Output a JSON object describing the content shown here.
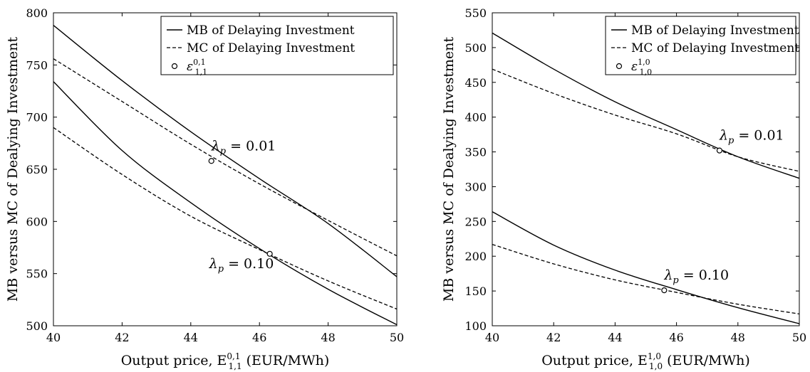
{
  "chart_data": [
    {
      "type": "line",
      "xlabel": "Output price, E",
      "xlabel_super": "0,1",
      "xlabel_sub": "1,1",
      "xlabel_suffix": " (EUR/MWh)",
      "ylabel": "MB versus MC of Dealying Investment",
      "xlim": [
        40,
        50
      ],
      "ylim": [
        500,
        800
      ],
      "xticks": [
        40,
        42,
        44,
        46,
        48,
        50
      ],
      "yticks": [
        500,
        550,
        600,
        650,
        700,
        750,
        800
      ],
      "grid": false,
      "legend": {
        "position": "top-right",
        "entries": [
          {
            "label": "MB of Delaying Investment",
            "style": "solid"
          },
          {
            "label": "MC of Delaying Investment",
            "style": "dashed"
          },
          {
            "label": "ε",
            "super": "0,1",
            "sub": "1,1",
            "style": "marker"
          }
        ]
      },
      "series": [
        {
          "group": "λp = 0.01",
          "kind": "MB",
          "style": "solid",
          "x": [
            40,
            42,
            44,
            46,
            48,
            50
          ],
          "y": [
            788,
            735,
            686,
            641,
            598,
            547
          ]
        },
        {
          "group": "λp = 0.01",
          "kind": "MC",
          "style": "dashed",
          "x": [
            40,
            42,
            44,
            46,
            48,
            50
          ],
          "y": [
            756,
            715,
            674,
            636,
            601,
            567
          ]
        },
        {
          "group": "λp = 0.10",
          "kind": "MB",
          "style": "solid",
          "x": [
            40,
            42,
            44,
            46,
            48,
            50
          ],
          "y": [
            734,
            668,
            618,
            574,
            535,
            501
          ]
        },
        {
          "group": "λp = 0.10",
          "kind": "MC",
          "style": "dashed",
          "x": [
            40,
            42,
            44,
            46,
            48,
            50
          ],
          "y": [
            690,
            645,
            605,
            573,
            543,
            516
          ]
        }
      ],
      "points": [
        {
          "x": 44.6,
          "y": 658,
          "label": "λ",
          "label_sub": "p",
          "label_value": " = 0.01",
          "label_side": "above"
        },
        {
          "x": 46.3,
          "y": 569,
          "label": "λ",
          "label_sub": "p",
          "label_value": " = 0.10",
          "label_side": "below-left"
        }
      ]
    },
    {
      "type": "line",
      "xlabel": "Output price, E",
      "xlabel_super": "1,0",
      "xlabel_sub": "1,0",
      "xlabel_suffix": " (EUR/MWh)",
      "ylabel": "MB versus MC of Dealying Investment",
      "xlim": [
        40,
        50
      ],
      "ylim": [
        100,
        550
      ],
      "xticks": [
        40,
        42,
        44,
        46,
        48,
        50
      ],
      "yticks": [
        100,
        150,
        200,
        250,
        300,
        350,
        400,
        450,
        500,
        550
      ],
      "grid": false,
      "legend": {
        "position": "top-right",
        "entries": [
          {
            "label": "MB of Delaying Investment",
            "style": "solid"
          },
          {
            "label": "MC of Delaying Investment",
            "style": "dashed"
          },
          {
            "label": "ε",
            "super": "1,0",
            "sub": "1,0",
            "style": "marker"
          }
        ]
      },
      "series": [
        {
          "group": "λp = 0.01",
          "kind": "MB",
          "style": "solid",
          "x": [
            40,
            42,
            44,
            46,
            48,
            50
          ],
          "y": [
            521,
            469,
            422,
            382,
            343,
            312
          ]
        },
        {
          "group": "λp = 0.01",
          "kind": "MC",
          "style": "dashed",
          "x": [
            40,
            42,
            44,
            46,
            48,
            50
          ],
          "y": [
            469,
            434,
            403,
            376,
            343,
            322
          ]
        },
        {
          "group": "λp = 0.10",
          "kind": "MB",
          "style": "solid",
          "x": [
            40,
            42,
            44,
            46,
            48,
            50
          ],
          "y": [
            264,
            216,
            180,
            152,
            126,
            103
          ]
        },
        {
          "group": "λp = 0.10",
          "kind": "MC",
          "style": "dashed",
          "x": [
            40,
            42,
            44,
            46,
            48,
            50
          ],
          "y": [
            217,
            189,
            166,
            148,
            131,
            117
          ]
        }
      ],
      "points": [
        {
          "x": 47.4,
          "y": 352,
          "label": "λ",
          "label_sub": "p",
          "label_value": " = 0.01",
          "label_side": "above"
        },
        {
          "x": 45.6,
          "y": 151,
          "label": "λ",
          "label_sub": "p",
          "label_value": " = 0.10",
          "label_side": "above"
        }
      ]
    }
  ]
}
